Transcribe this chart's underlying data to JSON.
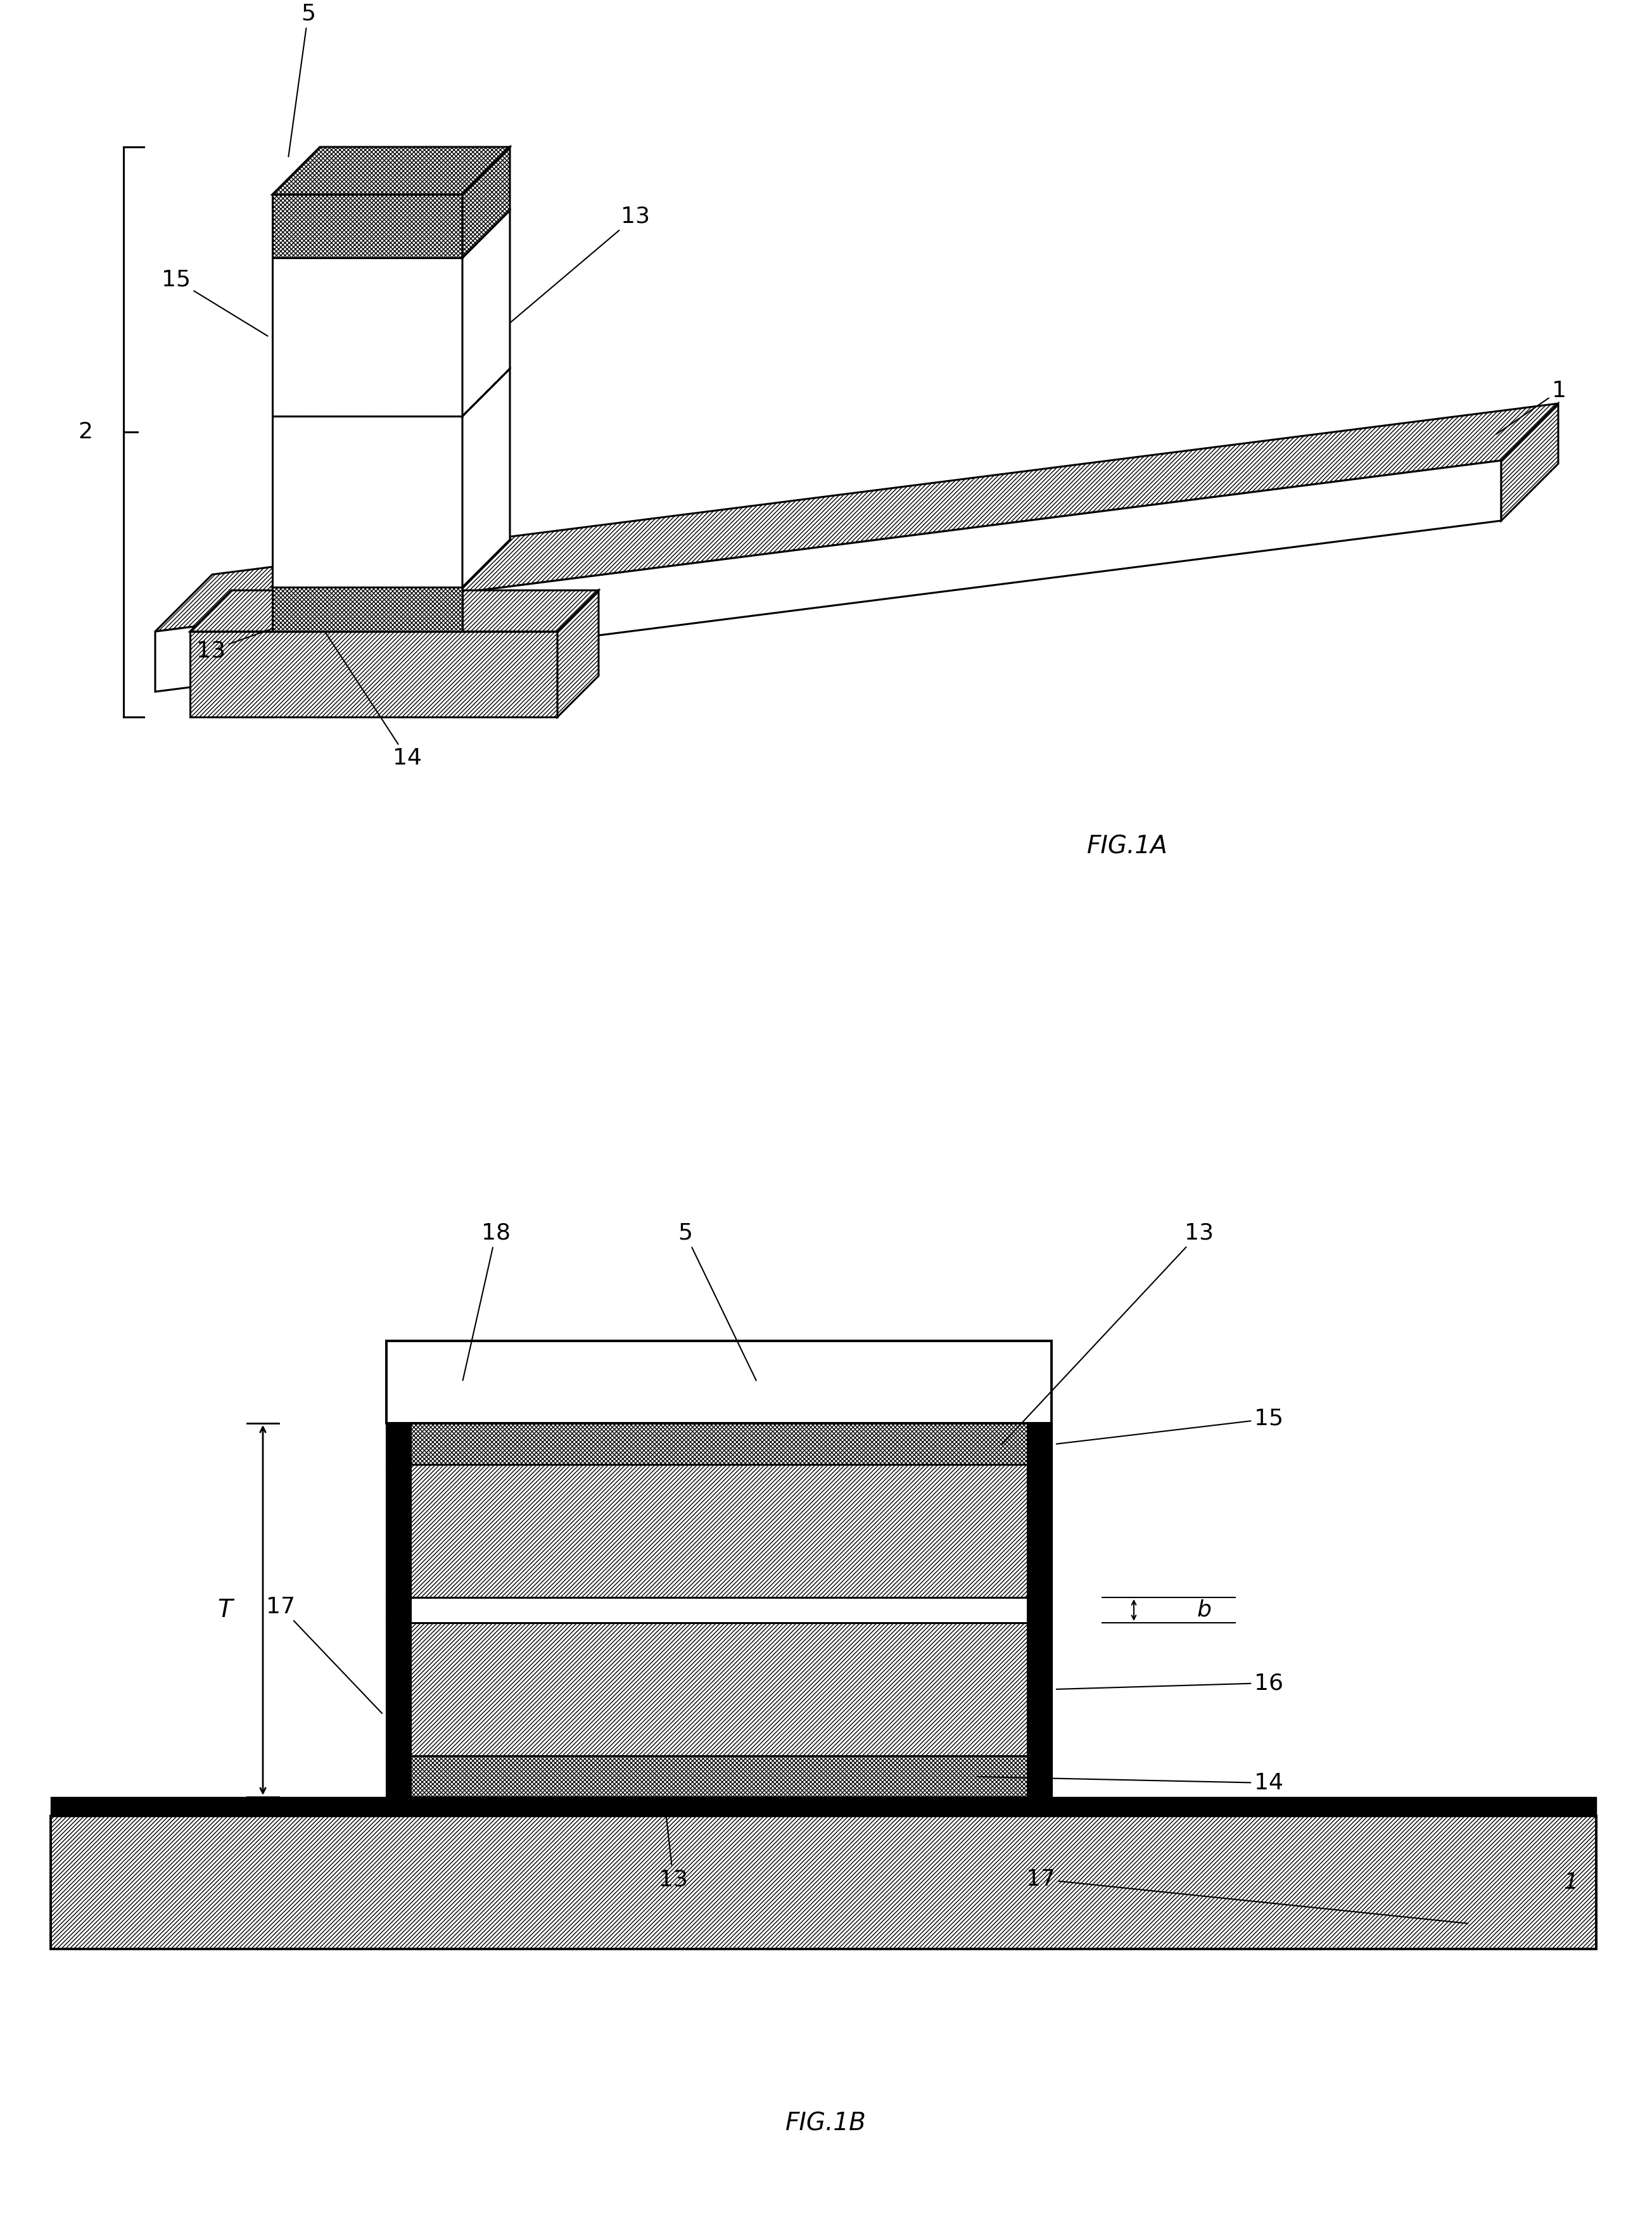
{
  "fig_width": 26.08,
  "fig_height": 35.27,
  "bg_color": "#ffffff",
  "fig1a_title": "FIG.1A",
  "fig1b_title": "FIG.1B",
  "title_fontsize": 28,
  "label_fontsize": 26,
  "pn_label_fontsize": 34
}
